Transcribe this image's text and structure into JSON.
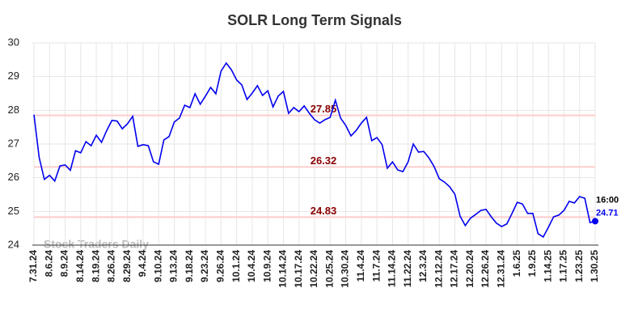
{
  "chart_data": {
    "type": "line",
    "title": "SOLR Long Term Signals",
    "watermark": "Stock Traders Daily",
    "categories": [
      "7.31.24",
      null,
      null,
      "8.6.24",
      null,
      null,
      "8.9.24",
      null,
      null,
      "8.14.24",
      null,
      null,
      "8.19.24",
      null,
      null,
      "8.26.24",
      null,
      null,
      "8.29.24",
      null,
      null,
      "9.4.24",
      null,
      null,
      "9.10.24",
      null,
      null,
      "9.13.24",
      null,
      null,
      "9.18.24",
      null,
      null,
      "9.23.24",
      null,
      null,
      "9.26.24",
      null,
      null,
      "10.1.24",
      null,
      null,
      "10.4.24",
      null,
      null,
      "10.9.24",
      null,
      null,
      "10.14.24",
      null,
      null,
      "10.17.24",
      null,
      null,
      "10.22.24",
      null,
      null,
      "10.25.24",
      null,
      null,
      "10.30.24",
      null,
      null,
      "11.4.24",
      null,
      null,
      "11.7.24",
      null,
      null,
      "11.14.24",
      null,
      null,
      "11.22.24",
      null,
      null,
      "12.3.24",
      null,
      null,
      "12.12.24",
      null,
      null,
      "12.17.24",
      null,
      null,
      "12.20.24",
      null,
      null,
      "12.26.24",
      null,
      null,
      "12.31.24",
      null,
      null,
      "1.6.25",
      null,
      null,
      "1.9.25",
      null,
      null,
      "1.14.25",
      null,
      null,
      "1.17.25",
      null,
      null,
      "1.23.25",
      null,
      null,
      "1.30.25"
    ],
    "series": [
      {
        "color": "#0000ee",
        "values": [
          27.87,
          26.6,
          25.95,
          26.07,
          25.9,
          26.35,
          26.38,
          26.22,
          26.8,
          26.74,
          27.07,
          26.95,
          27.26,
          27.05,
          27.4,
          27.7,
          27.68,
          27.45,
          27.6,
          27.82,
          26.93,
          26.98,
          26.95,
          26.47,
          26.4,
          27.12,
          27.22,
          27.65,
          27.77,
          28.15,
          28.08,
          28.49,
          28.18,
          28.42,
          28.68,
          28.49,
          29.16,
          29.4,
          29.2,
          28.9,
          28.75,
          28.32,
          28.51,
          28.73,
          28.44,
          28.58,
          28.1,
          28.42,
          28.56,
          27.91,
          28.08,
          27.96,
          28.13,
          27.91,
          27.72,
          27.62,
          27.72,
          27.79,
          28.3,
          27.77,
          27.55,
          27.24,
          27.4,
          27.62,
          27.79,
          27.1,
          27.19,
          26.98,
          26.28,
          26.47,
          26.23,
          26.18,
          26.47,
          27.0,
          26.76,
          26.78,
          26.59,
          26.33,
          25.97,
          25.87,
          25.73,
          25.51,
          24.86,
          24.58,
          24.8,
          24.91,
          25.03,
          25.06,
          24.84,
          24.65,
          24.55,
          24.63,
          24.94,
          25.27,
          25.22,
          24.94,
          24.94,
          24.34,
          24.24,
          24.53,
          24.84,
          24.89,
          25.03,
          25.3,
          25.25,
          25.44,
          25.39,
          24.67,
          24.71
        ]
      }
    ],
    "last_time": "16:00",
    "levels": [
      {
        "value": 27.85,
        "color": "#ffcccc"
      },
      {
        "value": 26.32,
        "color": "#ffcccc"
      },
      {
        "value": 24.83,
        "color": "#ffcccc"
      }
    ],
    "ylim": [
      24,
      30
    ],
    "yticks": [
      24,
      25,
      26,
      27,
      28,
      29,
      30
    ],
    "grid": true
  }
}
